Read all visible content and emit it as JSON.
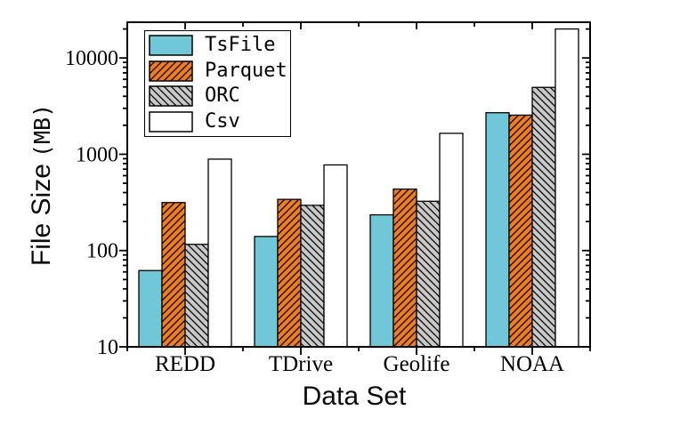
{
  "chart_data": {
    "type": "bar",
    "title": "",
    "xlabel": "Data Set",
    "ylabel": "File Size (MB)",
    "ylabel_main": "File Size",
    "ylabel_unit": "(MB)",
    "yscale": "log",
    "ylim": [
      10,
      23500
    ],
    "yticks": [
      "10",
      "100",
      "1000",
      "10000"
    ],
    "grid": false,
    "legend_position": "upper-left-inside",
    "bar_outline_color": "#000000",
    "categories": [
      "REDD",
      "TDrive",
      "Geolife",
      "NOAA"
    ],
    "series": [
      {
        "name": "TsFile",
        "color": "#6FC7D7",
        "hatch": "none",
        "values": [
          62,
          140,
          235,
          2700
        ]
      },
      {
        "name": "Parquet",
        "color": "#EE7D23",
        "hatch": "forward-diagonal",
        "values": [
          315,
          340,
          435,
          2550
        ]
      },
      {
        "name": "ORC",
        "color": "#C8C8C8",
        "hatch": "backward-diagonal",
        "values": [
          116,
          295,
          325,
          4950
        ]
      },
      {
        "name": "Csv",
        "color": "#FFFFFF",
        "hatch": "none",
        "values": [
          890,
          775,
          1650,
          20000
        ]
      }
    ]
  }
}
